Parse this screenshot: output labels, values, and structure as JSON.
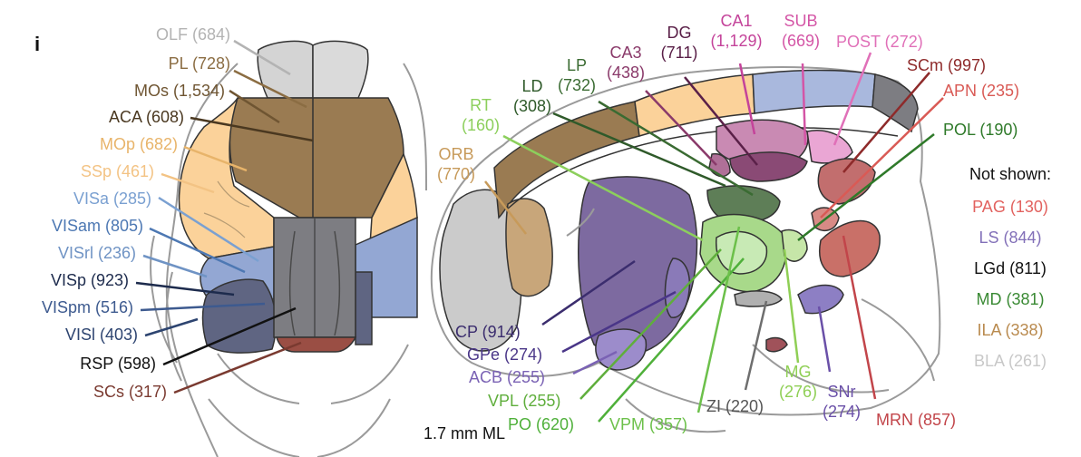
{
  "panel_letter": "i",
  "scale_note": "1.7 mm ML",
  "not_shown_title": "Not shown:",
  "colors": {
    "OLF": "#b3b3b3",
    "PL": "#8b6d43",
    "MOs": "#6f5532",
    "ACA": "#4a3820",
    "MOp": "#e8b46a",
    "SSp": "#f3c384",
    "VISa": "#7aa0d1",
    "VISam": "#4d78b3",
    "VISrl": "#6f93c4",
    "VISp": "#1d2b4d",
    "VISpm": "#3d5a8f",
    "VISl": "#2d4470",
    "RSP": "#111111",
    "SCs": "#7a3a30",
    "RT": "#8ccf5c",
    "LD": "#2f5a2a",
    "LP": "#3a6b32",
    "ORB": "#c79a5a",
    "CA3": "#8a3a6a",
    "DG": "#5a2048",
    "CA1": "#c4439a",
    "SUB": "#d455a6",
    "POST": "#e070b8",
    "SCm": "#8e2a2a",
    "APN": "#d95a55",
    "POL": "#2f7a2a",
    "CP": "#3b2d6e",
    "GPe": "#4a3688",
    "ACB": "#7a62b4",
    "VPL": "#5fae3c",
    "PO": "#4fb03a",
    "VPM": "#6cc04a",
    "ZI": "#6e6e6e",
    "MG": "#8fcf55",
    "SNr": "#6a50a8",
    "MRN": "#c2454a",
    "PAG": "#e2625f",
    "LS": "#8270b8",
    "LGd": "#111111",
    "MD": "#3a8a34",
    "ILA": "#b98a4e",
    "BLA": "#c8c8c8"
  },
  "left_labels": [
    {
      "id": "OLF",
      "text": "OLF (684)"
    },
    {
      "id": "PL",
      "text": "PL (728)"
    },
    {
      "id": "MOs",
      "text": "MOs (1,534)"
    },
    {
      "id": "ACA",
      "text": "ACA (608)"
    },
    {
      "id": "MOp",
      "text": "MOp (682)"
    },
    {
      "id": "SSp",
      "text": "SSp (461)"
    },
    {
      "id": "VISa",
      "text": "VISa (285)"
    },
    {
      "id": "VISam",
      "text": "VISam (805)"
    },
    {
      "id": "VISrl",
      "text": "VISrl (236)"
    },
    {
      "id": "VISp",
      "text": "VISp (923)"
    },
    {
      "id": "VISpm",
      "text": "VISpm (516)"
    },
    {
      "id": "VISl",
      "text": "VISl (403)"
    },
    {
      "id": "RSP",
      "text": "RSP (598)"
    },
    {
      "id": "SCs",
      "text": "SCs (317)"
    }
  ],
  "right_labels": {
    "RT": [
      "RT",
      "(160)"
    ],
    "LD": [
      "LD",
      "(308)"
    ],
    "LP": [
      "LP",
      "(732)"
    ],
    "ORB": [
      "ORB",
      "(770)"
    ],
    "CA3": [
      "CA3",
      "(438)"
    ],
    "DG": [
      "DG",
      "(711)"
    ],
    "CA1": [
      "CA1",
      "(1,129)"
    ],
    "SUB": [
      "SUB",
      "(669)"
    ],
    "POST": "POST (272)",
    "SCm": "SCm (997)",
    "APN": "APN (235)",
    "POL": "POL (190)",
    "CP": "CP (914)",
    "GPe": "GPe (274)",
    "ACB": "ACB (255)",
    "VPL": "VPL (255)",
    "PO": "PO (620)",
    "VPM": "VPM (357)",
    "ZI": "ZI (220)",
    "MG": [
      "MG",
      "(276)"
    ],
    "SNr": [
      "SNr",
      "(274)"
    ],
    "MRN": "MRN (857)"
  },
  "not_shown": [
    {
      "id": "PAG",
      "text": "PAG (130)"
    },
    {
      "id": "LS",
      "text": "LS (844)"
    },
    {
      "id": "LGd",
      "text": "LGd (811)"
    },
    {
      "id": "MD",
      "text": "MD (381)"
    },
    {
      "id": "ILA",
      "text": "ILA (338)"
    },
    {
      "id": "BLA",
      "text": "BLA (261)"
    }
  ]
}
